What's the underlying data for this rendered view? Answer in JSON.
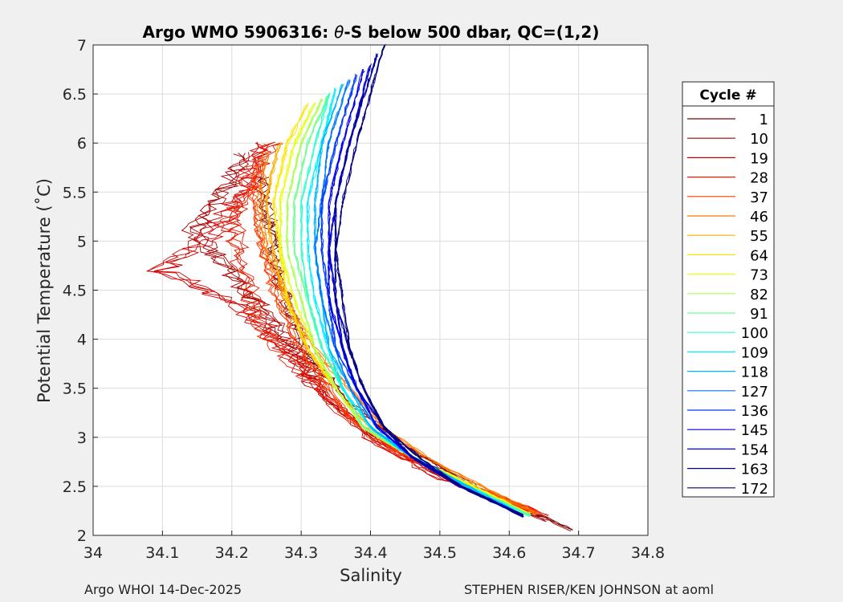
{
  "chart_data": {
    "type": "line",
    "title_prefix": "Argo WMO 5906316: ",
    "title_theta": "θ",
    "title_suffix": "-S below 500 dbar,  QC=(1,2)",
    "xlabel": "Salinity",
    "ylabel": "Potential Temperature (˚C)",
    "xlim": [
      34.0,
      34.8
    ],
    "ylim": [
      2.0,
      7.0
    ],
    "x_ticks": [
      34.0,
      34.1,
      34.2,
      34.3,
      34.4,
      34.5,
      34.6,
      34.7,
      34.8
    ],
    "x_tick_labels": [
      "34",
      "34.1",
      "34.2",
      "34.3",
      "34.4",
      "34.5",
      "34.6",
      "34.7",
      "34.8"
    ],
    "y_ticks": [
      2.0,
      2.5,
      3.0,
      3.5,
      4.0,
      4.5,
      5.0,
      5.5,
      6.0,
      6.5,
      7.0
    ],
    "y_tick_labels": [
      "2",
      "2.5",
      "3",
      "3.5",
      "4",
      "4.5",
      "5",
      "5.5",
      "6",
      "6.5",
      "7"
    ],
    "grid": true,
    "legend_title": "Cycle #",
    "legend_position": "right",
    "legend": [
      {
        "label": "1",
        "color": "#800000"
      },
      {
        "label": "10",
        "color": "#a80000"
      },
      {
        "label": "19",
        "color": "#d40000"
      },
      {
        "label": "28",
        "color": "#e81c00"
      },
      {
        "label": "37",
        "color": "#ff3c00"
      },
      {
        "label": "46",
        "color": "#ff7a00"
      },
      {
        "label": "55",
        "color": "#ffae00"
      },
      {
        "label": "64",
        "color": "#ffe600"
      },
      {
        "label": "73",
        "color": "#e6ff19"
      },
      {
        "label": "82",
        "color": "#aaff55"
      },
      {
        "label": "91",
        "color": "#6eff91"
      },
      {
        "label": "100",
        "color": "#32ffcd"
      },
      {
        "label": "109",
        "color": "#00f0ff"
      },
      {
        "label": "118",
        "color": "#00b4ff"
      },
      {
        "label": "127",
        "color": "#0078ff"
      },
      {
        "label": "136",
        "color": "#003cff"
      },
      {
        "label": "145",
        "color": "#0000f0"
      },
      {
        "label": "154",
        "color": "#0000c8"
      },
      {
        "label": "163",
        "color": "#0000a0"
      },
      {
        "label": "172",
        "color": "#000080"
      }
    ],
    "series": [
      {
        "name": "1",
        "color": "#800000",
        "points": [
          [
            34.69,
            2.05
          ],
          [
            34.55,
            2.5
          ],
          [
            34.45,
            2.9
          ],
          [
            34.36,
            3.4
          ],
          [
            34.31,
            3.8
          ],
          [
            34.28,
            4.3
          ],
          [
            34.26,
            4.8
          ],
          [
            34.25,
            5.3
          ],
          [
            34.24,
            5.7
          ]
        ],
        "jitter": 0.022
      },
      {
        "name": "10",
        "color": "#a80000",
        "points": [
          [
            34.66,
            2.15
          ],
          [
            34.52,
            2.55
          ],
          [
            34.42,
            2.95
          ],
          [
            34.34,
            3.4
          ],
          [
            34.3,
            3.8
          ],
          [
            34.26,
            4.2
          ],
          [
            34.2,
            4.7
          ],
          [
            34.15,
            5.1
          ],
          [
            34.2,
            5.6
          ],
          [
            34.22,
            5.9
          ]
        ],
        "jitter": 0.03
      },
      {
        "name": "19",
        "color": "#d40000",
        "points": [
          [
            34.64,
            2.25
          ],
          [
            34.5,
            2.6
          ],
          [
            34.4,
            3.0
          ],
          [
            34.33,
            3.5
          ],
          [
            34.27,
            4.0
          ],
          [
            34.2,
            4.4
          ],
          [
            34.1,
            4.7
          ],
          [
            34.18,
            5.1
          ],
          [
            34.22,
            5.5
          ],
          [
            34.25,
            6.0
          ]
        ],
        "jitter": 0.035
      },
      {
        "name": "28",
        "color": "#e81c00",
        "points": [
          [
            34.65,
            2.2
          ],
          [
            34.52,
            2.55
          ],
          [
            34.42,
            2.9
          ],
          [
            34.35,
            3.3
          ],
          [
            34.3,
            3.7
          ],
          [
            34.24,
            4.1
          ],
          [
            34.22,
            4.6
          ],
          [
            34.2,
            5.2
          ],
          [
            34.23,
            5.7
          ],
          [
            34.26,
            6.0
          ]
        ],
        "jitter": 0.025
      },
      {
        "name": "37",
        "color": "#ff3c00",
        "points": [
          [
            34.64,
            2.25
          ],
          [
            34.53,
            2.55
          ],
          [
            34.44,
            2.85
          ],
          [
            34.37,
            3.2
          ],
          [
            34.33,
            3.6
          ],
          [
            34.29,
            4.0
          ],
          [
            34.26,
            4.5
          ],
          [
            34.24,
            5.0
          ],
          [
            34.23,
            5.5
          ],
          [
            34.24,
            5.8
          ]
        ],
        "jitter": 0.012
      },
      {
        "name": "46",
        "color": "#ff7a00",
        "points": [
          [
            34.64,
            2.22
          ],
          [
            34.56,
            2.5
          ],
          [
            34.48,
            2.8
          ],
          [
            34.42,
            3.1
          ],
          [
            34.37,
            3.5
          ],
          [
            34.32,
            3.9
          ],
          [
            34.28,
            4.4
          ],
          [
            34.25,
            4.9
          ],
          [
            34.24,
            5.4
          ],
          [
            34.25,
            5.9
          ]
        ],
        "jitter": 0.008
      },
      {
        "name": "55",
        "color": "#ffae00",
        "points": [
          [
            34.63,
            2.22
          ],
          [
            34.55,
            2.5
          ],
          [
            34.46,
            2.8
          ],
          [
            34.4,
            3.1
          ],
          [
            34.35,
            3.5
          ],
          [
            34.31,
            3.9
          ],
          [
            34.28,
            4.4
          ],
          [
            34.26,
            4.9
          ],
          [
            34.25,
            5.4
          ],
          [
            34.27,
            6.0
          ]
        ],
        "jitter": 0.006
      },
      {
        "name": "64",
        "color": "#ffe600",
        "points": [
          [
            34.63,
            2.21
          ],
          [
            34.55,
            2.5
          ],
          [
            34.46,
            2.8
          ],
          [
            34.39,
            3.1
          ],
          [
            34.35,
            3.5
          ],
          [
            34.31,
            3.9
          ],
          [
            34.28,
            4.4
          ],
          [
            34.27,
            4.9
          ],
          [
            34.26,
            5.4
          ],
          [
            34.28,
            6.0
          ],
          [
            34.31,
            6.4
          ]
        ],
        "jitter": 0.004
      },
      {
        "name": "73",
        "color": "#e6ff19",
        "points": [
          [
            34.63,
            2.21
          ],
          [
            34.55,
            2.5
          ],
          [
            34.46,
            2.8
          ],
          [
            34.39,
            3.1
          ],
          [
            34.35,
            3.5
          ],
          [
            34.32,
            3.9
          ],
          [
            34.29,
            4.4
          ],
          [
            34.27,
            4.9
          ],
          [
            34.27,
            5.4
          ],
          [
            34.29,
            6.0
          ],
          [
            34.32,
            6.4
          ]
        ],
        "jitter": 0.004
      },
      {
        "name": "82",
        "color": "#aaff55",
        "points": [
          [
            34.63,
            2.2
          ],
          [
            34.54,
            2.5
          ],
          [
            34.46,
            2.8
          ],
          [
            34.39,
            3.1
          ],
          [
            34.35,
            3.5
          ],
          [
            34.32,
            3.9
          ],
          [
            34.3,
            4.4
          ],
          [
            34.28,
            4.9
          ],
          [
            34.28,
            5.4
          ],
          [
            34.3,
            6.0
          ],
          [
            34.33,
            6.45
          ]
        ],
        "jitter": 0.003
      },
      {
        "name": "91",
        "color": "#6eff91",
        "points": [
          [
            34.63,
            2.2
          ],
          [
            34.54,
            2.5
          ],
          [
            34.46,
            2.8
          ],
          [
            34.39,
            3.1
          ],
          [
            34.36,
            3.5
          ],
          [
            34.33,
            3.9
          ],
          [
            34.31,
            4.4
          ],
          [
            34.29,
            4.9
          ],
          [
            34.29,
            5.4
          ],
          [
            34.31,
            6.0
          ],
          [
            34.34,
            6.5
          ]
        ],
        "jitter": 0.003
      },
      {
        "name": "100",
        "color": "#32ffcd",
        "points": [
          [
            34.63,
            2.2
          ],
          [
            34.54,
            2.5
          ],
          [
            34.46,
            2.8
          ],
          [
            34.4,
            3.1
          ],
          [
            34.36,
            3.5
          ],
          [
            34.33,
            3.9
          ],
          [
            34.31,
            4.4
          ],
          [
            34.3,
            4.9
          ],
          [
            34.3,
            5.4
          ],
          [
            34.32,
            6.0
          ],
          [
            34.34,
            6.5
          ]
        ],
        "jitter": 0.003
      },
      {
        "name": "109",
        "color": "#00f0ff",
        "points": [
          [
            34.62,
            2.2
          ],
          [
            34.54,
            2.5
          ],
          [
            34.46,
            2.8
          ],
          [
            34.4,
            3.1
          ],
          [
            34.36,
            3.5
          ],
          [
            34.34,
            3.9
          ],
          [
            34.32,
            4.4
          ],
          [
            34.31,
            4.9
          ],
          [
            34.31,
            5.4
          ],
          [
            34.33,
            6.0
          ],
          [
            34.35,
            6.55
          ]
        ],
        "jitter": 0.003
      },
      {
        "name": "118",
        "color": "#00b4ff",
        "points": [
          [
            34.62,
            2.2
          ],
          [
            34.54,
            2.5
          ],
          [
            34.46,
            2.8
          ],
          [
            34.4,
            3.1
          ],
          [
            34.37,
            3.5
          ],
          [
            34.34,
            3.9
          ],
          [
            34.33,
            4.4
          ],
          [
            34.32,
            4.9
          ],
          [
            34.32,
            5.4
          ],
          [
            34.33,
            6.0
          ],
          [
            34.36,
            6.6
          ]
        ],
        "jitter": 0.003
      },
      {
        "name": "127",
        "color": "#0078ff",
        "points": [
          [
            34.62,
            2.2
          ],
          [
            34.53,
            2.5
          ],
          [
            34.46,
            2.8
          ],
          [
            34.41,
            3.1
          ],
          [
            34.37,
            3.5
          ],
          [
            34.35,
            3.9
          ],
          [
            34.33,
            4.4
          ],
          [
            34.32,
            4.9
          ],
          [
            34.33,
            5.4
          ],
          [
            34.34,
            6.0
          ],
          [
            34.37,
            6.65
          ]
        ],
        "jitter": 0.003
      },
      {
        "name": "136",
        "color": "#003cff",
        "points": [
          [
            34.62,
            2.2
          ],
          [
            34.53,
            2.5
          ],
          [
            34.46,
            2.8
          ],
          [
            34.41,
            3.1
          ],
          [
            34.38,
            3.5
          ],
          [
            34.35,
            3.9
          ],
          [
            34.34,
            4.4
          ],
          [
            34.33,
            4.9
          ],
          [
            34.33,
            5.4
          ],
          [
            34.35,
            6.0
          ],
          [
            34.38,
            6.7
          ]
        ],
        "jitter": 0.003
      },
      {
        "name": "145",
        "color": "#0000f0",
        "points": [
          [
            34.62,
            2.2
          ],
          [
            34.53,
            2.5
          ],
          [
            34.46,
            2.8
          ],
          [
            34.41,
            3.1
          ],
          [
            34.38,
            3.5
          ],
          [
            34.36,
            3.9
          ],
          [
            34.34,
            4.4
          ],
          [
            34.34,
            4.9
          ],
          [
            34.34,
            5.4
          ],
          [
            34.36,
            6.0
          ],
          [
            34.39,
            6.75
          ]
        ],
        "jitter": 0.003
      },
      {
        "name": "154",
        "color": "#0000c8",
        "points": [
          [
            34.62,
            2.2
          ],
          [
            34.53,
            2.5
          ],
          [
            34.46,
            2.8
          ],
          [
            34.42,
            3.1
          ],
          [
            34.38,
            3.5
          ],
          [
            34.36,
            3.9
          ],
          [
            34.35,
            4.4
          ],
          [
            34.34,
            4.9
          ],
          [
            34.35,
            5.4
          ],
          [
            34.37,
            6.0
          ],
          [
            34.4,
            6.8
          ]
        ],
        "jitter": 0.003
      },
      {
        "name": "163",
        "color": "#0000a0",
        "points": [
          [
            34.62,
            2.2
          ],
          [
            34.53,
            2.5
          ],
          [
            34.46,
            2.8
          ],
          [
            34.42,
            3.1
          ],
          [
            34.39,
            3.5
          ],
          [
            34.37,
            3.9
          ],
          [
            34.35,
            4.4
          ],
          [
            34.35,
            4.9
          ],
          [
            34.35,
            5.4
          ],
          [
            34.37,
            6.0
          ],
          [
            34.41,
            6.9
          ]
        ],
        "jitter": 0.003
      },
      {
        "name": "172",
        "color": "#000080",
        "points": [
          [
            34.62,
            2.2
          ],
          [
            34.53,
            2.5
          ],
          [
            34.47,
            2.8
          ],
          [
            34.42,
            3.1
          ],
          [
            34.39,
            3.5
          ],
          [
            34.37,
            3.9
          ],
          [
            34.36,
            4.4
          ],
          [
            34.35,
            4.9
          ],
          [
            34.36,
            5.4
          ],
          [
            34.38,
            6.0
          ],
          [
            34.42,
            7.0
          ]
        ],
        "jitter": 0.003
      }
    ]
  },
  "footer": {
    "left": "Argo WHOI 14-Dec-2025",
    "right": "STEPHEN RISER/KEN JOHNSON at aoml"
  }
}
